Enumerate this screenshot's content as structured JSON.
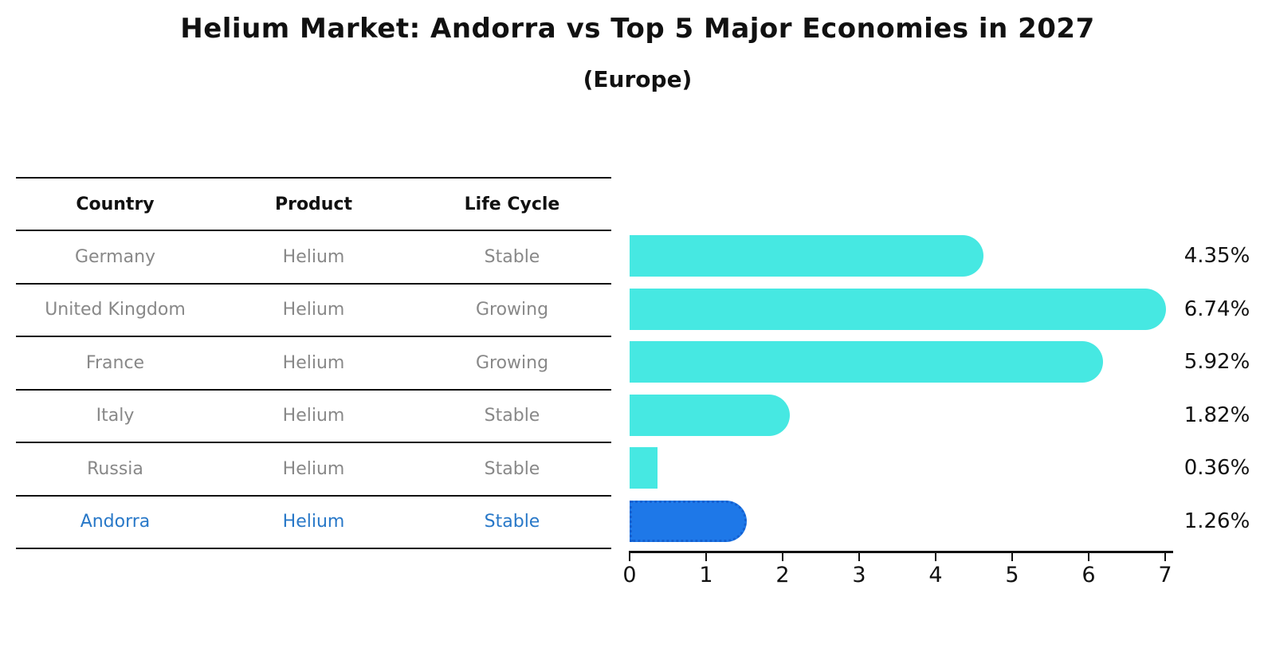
{
  "title": "Helium Market: Andorra vs Top 5 Major Economies in 2027",
  "subtitle": "(Europe)",
  "table": {
    "headers": [
      "Country",
      "Product",
      "Life Cycle"
    ],
    "rows": [
      {
        "country": "Germany",
        "product": "Helium",
        "life_cycle": "Stable",
        "highlight": false
      },
      {
        "country": "United Kingdom",
        "product": "Helium",
        "life_cycle": "Growing",
        "highlight": false
      },
      {
        "country": "France",
        "product": "Helium",
        "life_cycle": "Growing",
        "highlight": false
      },
      {
        "country": "Italy",
        "product": "Helium",
        "life_cycle": "Stable",
        "highlight": false
      },
      {
        "country": "Russia",
        "product": "Helium",
        "life_cycle": "Stable",
        "highlight": false
      },
      {
        "country": "Andorra",
        "product": "Helium",
        "life_cycle": "Stable",
        "highlight": true
      }
    ]
  },
  "chart_data": {
    "type": "bar",
    "orientation": "horizontal",
    "title": "Helium Market: Andorra vs Top 5 Major Economies in 2027",
    "subtitle": "(Europe)",
    "categories": [
      "Germany",
      "United Kingdom",
      "France",
      "Italy",
      "Russia",
      "Andorra"
    ],
    "values": [
      4.35,
      6.74,
      5.92,
      1.82,
      0.36,
      1.26
    ],
    "value_labels": [
      "4.35%",
      "6.74%",
      "5.92%",
      "1.82%",
      "0.36%",
      "1.26%"
    ],
    "xlabel": "",
    "ylabel": "",
    "xlim": [
      0,
      7
    ],
    "xticks": [
      "0",
      "1",
      "2",
      "3",
      "4",
      "5",
      "6",
      "7"
    ],
    "grid": false,
    "legend": false,
    "highlight_index": 5,
    "bar_color": "#46E8E2",
    "highlight_bar_color": "#1E78E8",
    "highlight_text_color": "#2878C8"
  },
  "colors": {
    "text": "#111111",
    "table_text": "#888888",
    "bar": "#46E8E2",
    "highlight_bar": "#1E78E8",
    "highlight_text": "#2878C8",
    "rule": "#111111"
  }
}
